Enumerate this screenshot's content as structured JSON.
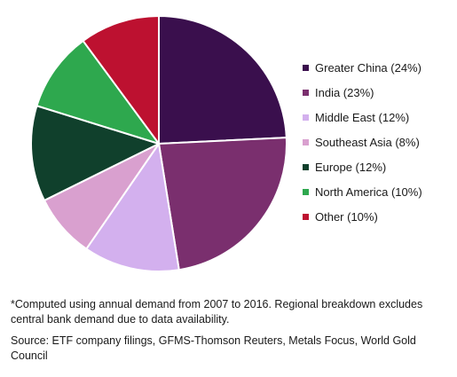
{
  "chart_data": {
    "type": "pie",
    "categories": [
      "Greater China",
      "India",
      "Middle East",
      "Southeast Asia",
      "Europe",
      "North America",
      "Other"
    ],
    "values": [
      24,
      23,
      12,
      8,
      12,
      10,
      10
    ],
    "legend_labels": [
      "Greater China (24%)",
      "India (23%)",
      "Middle East (12%)",
      "Southeast Asia (8%)",
      "Europe (12%)",
      "North America (10%)",
      "Other (10%)"
    ],
    "colors": [
      "#3a0f4d",
      "#7a2f6e",
      "#d3b0ee",
      "#d9a0cf",
      "#10402c",
      "#2ea84e",
      "#bd1130"
    ],
    "legend_position": "right",
    "start_angle": "top, clockwise"
  },
  "footnote": "*Computed using annual demand from 2007 to 2016. Regional breakdown excludes central bank demand due to data availability.",
  "source": "Source: ETF company filings, GFMS-Thomson Reuters, Metals Focus, World Gold Council"
}
